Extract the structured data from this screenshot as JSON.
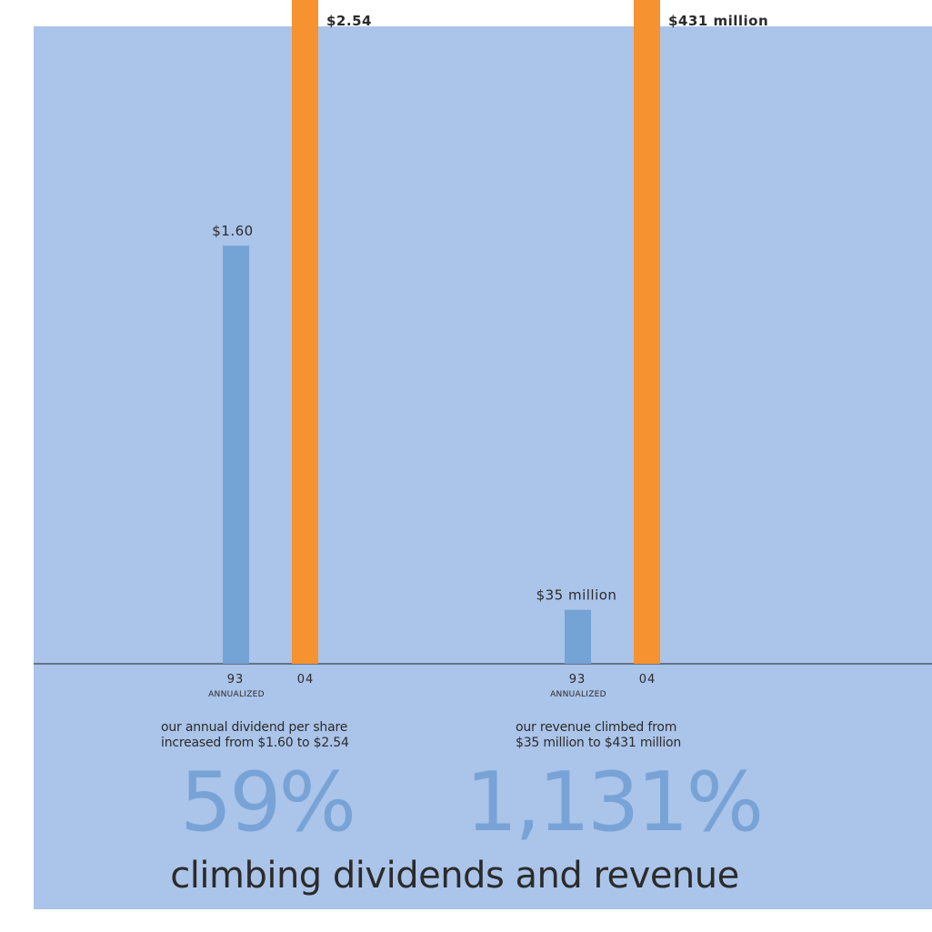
{
  "title": "climbing dividends and revenue",
  "colors": {
    "background_panel": "#abc4e9",
    "bar_93": "#74a3d6",
    "bar_04": "#f69230",
    "percent_text": "#78a3d6",
    "text": "#2b2b2b"
  },
  "chart_data": [
    {
      "type": "bar",
      "categories": [
        "93",
        "04"
      ],
      "category_sublabels": [
        "ANNUALIZED",
        ""
      ],
      "values": [
        1.6,
        2.54
      ],
      "data_labels": [
        "$1.60",
        "$2.54"
      ],
      "ylim": [
        0,
        2.54
      ],
      "caption_line1": "our annual dividend per share",
      "caption_line2": "increased from $1.60 to $2.54",
      "percent_change": "59%"
    },
    {
      "type": "bar",
      "categories": [
        "93",
        "04"
      ],
      "category_sublabels": [
        "ANNUALIZED",
        ""
      ],
      "values": [
        35,
        431
      ],
      "data_labels": [
        "$35 million",
        "$431 million"
      ],
      "ylim": [
        0,
        431
      ],
      "caption_line1": "our revenue climbed from",
      "caption_line2": "$35 million to $431 million",
      "percent_change": "1,131%"
    }
  ]
}
